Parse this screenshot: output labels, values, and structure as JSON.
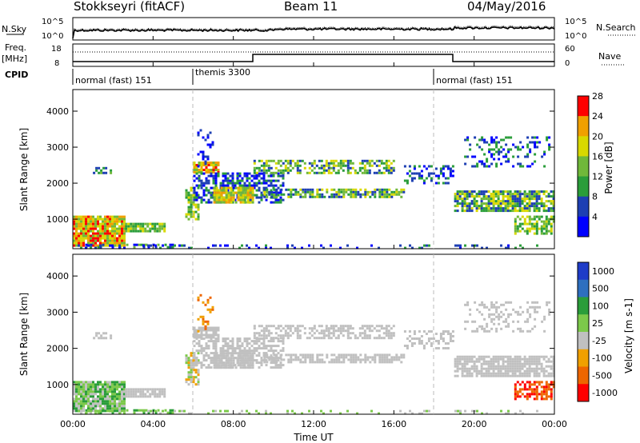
{
  "header": {
    "radar": "Stokkseyri (fitACF)",
    "beam": "Beam 11",
    "date": "04/May/2016"
  },
  "noise_panel": {
    "left_label": "N.Sky",
    "right_label": "N.Search",
    "left_ticks": [
      "10^5",
      "10^0"
    ],
    "right_ticks": [
      "10^5",
      "10^0"
    ]
  },
  "freq_panel": {
    "left_label": "Freq.",
    "left_unit": "[MHz]",
    "right_label": "Nave",
    "left_ticks": [
      "18",
      "8"
    ],
    "right_ticks": [
      "60",
      "0"
    ]
  },
  "cpid": {
    "label": "CPID",
    "segments": [
      {
        "name": "normal (fast) 151",
        "start_hour": 0,
        "end_hour": 6
      },
      {
        "name": "themis 3300",
        "start_hour": 6,
        "end_hour": 18
      },
      {
        "name": "normal (fast) 151",
        "start_hour": 18,
        "end_hour": 24
      }
    ]
  },
  "chart_data": [
    {
      "type": "heatmap",
      "name": "power",
      "ylabel": "Slant Range [km]",
      "yticks": [
        1000,
        2000,
        3000,
        4000
      ],
      "ylim": [
        180,
        4600
      ],
      "colorbar_label": "Power [dB]",
      "colorbar_ticks": [
        4,
        8,
        12,
        16,
        20,
        24,
        28
      ],
      "colorbar_colors": [
        "#0000ff",
        "#1d3fb3",
        "#2a9d3a",
        "#70b83a",
        "#d8d800",
        "#f0a000",
        "#ff0000"
      ]
    },
    {
      "type": "heatmap",
      "name": "velocity",
      "ylabel": "Slant Range [km]",
      "yticks": [
        1000,
        2000,
        3000,
        4000
      ],
      "ylim": [
        180,
        4600
      ],
      "colorbar_label": "Velocity [m s-1]",
      "colorbar_ticks": [
        "1000",
        "500",
        "100",
        "25",
        "-25",
        "-100",
        "-500",
        "-1000"
      ],
      "colorbar_colors": [
        "#1e3cc8",
        "#2e6fbf",
        "#2a9d3a",
        "#7cc94a",
        "#c0c0c0",
        "#f0a000",
        "#ee6600",
        "#ff0000"
      ]
    }
  ],
  "time_axis": {
    "xlabel": "Time UT",
    "xticks": [
      "00:00",
      "04:00",
      "08:00",
      "12:00",
      "16:00",
      "20:00",
      "00:00"
    ],
    "xlim_hours": [
      0,
      24
    ]
  }
}
